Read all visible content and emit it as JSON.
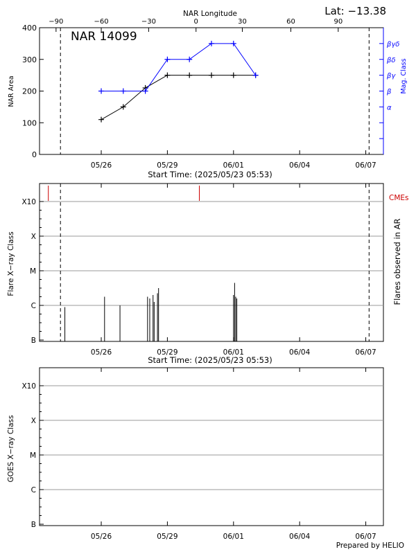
{
  "header": {
    "latitude_text": "Lat: −13.38",
    "top_axis_label": "NAR Longitude",
    "footer": "Prepared by HELIO"
  },
  "colors": {
    "area": "#000000",
    "mag": "#0000ff",
    "cme": "#cc0000",
    "grid": "#999999"
  },
  "chart_data": [
    {
      "type": "line",
      "title": "NAR 14099",
      "ylabel": "NAR Area",
      "y2label": "Mag. Class",
      "xlabel": "Start Time: (2025/05/23 05:53)",
      "xlim_days": [
        0,
        15.6
      ],
      "ylim": [
        0,
        400
      ],
      "yticks": [
        0,
        100,
        200,
        300,
        400
      ],
      "x_tick_labels": [
        "05/26",
        "05/29",
        "06/01",
        "06/04",
        "06/07"
      ],
      "x_tick_days": [
        2.8,
        5.8,
        8.8,
        11.8,
        14.8
      ],
      "longitude_ticks": [
        -90,
        -60,
        -30,
        0,
        30,
        60,
        90
      ],
      "longitude_tick_days": [
        0.75,
        2.8,
        4.95,
        7.1,
        9.2,
        11.4,
        13.55
      ],
      "dashed_line_days": [
        0.95,
        14.95
      ],
      "mag_class_labels": [
        "α",
        "β",
        "βγ",
        "βδ",
        "βγδ"
      ],
      "mag_class_levels": [
        1,
        2,
        3,
        4,
        5
      ],
      "y2lim": [
        -2,
        6
      ],
      "series": [
        {
          "key": "area",
          "x_days": [
            2.8,
            3.8,
            4.8,
            5.8,
            6.8,
            7.8,
            8.8,
            9.8
          ],
          "values": [
            110,
            150,
            210,
            250,
            250,
            250,
            250,
            250
          ]
        },
        {
          "key": "mag",
          "x_days": [
            2.8,
            3.8,
            4.8,
            5.8,
            6.8,
            7.8,
            8.8,
            9.8
          ],
          "values": [
            2,
            2,
            2,
            4,
            4,
            5,
            5,
            3
          ]
        }
      ]
    },
    {
      "type": "bar",
      "ylabel": "Flare X−ray Class",
      "y2label": "Flares observed in AR",
      "xlabel": "Start Time: (2025/05/23 05:53)",
      "xlim_days": [
        0,
        15.6
      ],
      "y_class_labels": [
        "B",
        "C",
        "M",
        "X",
        "X10"
      ],
      "y_class_levels": [
        0,
        1,
        2,
        3,
        4
      ],
      "x_tick_labels": [
        "05/26",
        "05/29",
        "06/01",
        "06/04",
        "06/07"
      ],
      "x_tick_days": [
        2.8,
        5.8,
        8.8,
        11.8,
        14.8
      ],
      "dashed_line_days": [
        0.95,
        14.95
      ],
      "cme_label": "CMEs",
      "cme_days": [
        0.4,
        7.25
      ],
      "flare_days": [
        1.15,
        2.95,
        3.65,
        4.9,
        5.0,
        5.15,
        5.2,
        5.35,
        5.4,
        8.8,
        8.85,
        8.9,
        8.95
      ],
      "flare_levels": [
        0.95,
        1.25,
        1.0,
        1.25,
        1.2,
        1.3,
        1.1,
        1.35,
        1.5,
        1.3,
        1.65,
        1.25,
        1.2
      ]
    },
    {
      "type": "line",
      "ylabel": "GOES X−ray Class",
      "xlim_days": [
        0,
        15.6
      ],
      "y_class_labels": [
        "B",
        "C",
        "M",
        "X",
        "X10"
      ],
      "y_class_levels": [
        0,
        1,
        2,
        3,
        4
      ],
      "x_tick_labels": [
        "05/26",
        "05/29",
        "06/01",
        "06/04",
        "06/07"
      ],
      "x_tick_days": [
        2.8,
        5.8,
        8.8,
        11.8,
        14.8
      ],
      "series": []
    }
  ]
}
